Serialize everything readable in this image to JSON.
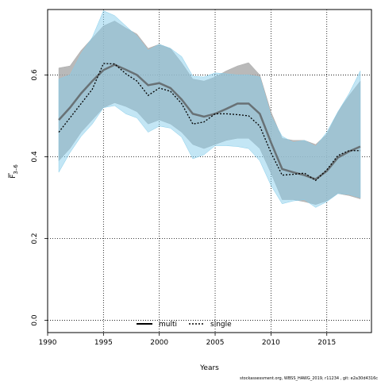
{
  "chart_data": {
    "type": "line",
    "xlabel": "Years",
    "ylabel_main": "F",
    "ylabel_sub": "3–6",
    "xlim": [
      1990,
      2019
    ],
    "ylim": [
      -0.03,
      0.76
    ],
    "xticks": [
      1990,
      1995,
      2000,
      2005,
      2010,
      2015
    ],
    "yticks": [
      0.0,
      0.2,
      0.4,
      0.6
    ],
    "grid": true,
    "legend_position": "bottom-center",
    "x": [
      1991,
      1992,
      1993,
      1994,
      1995,
      1996,
      1997,
      1998,
      1999,
      2000,
      2001,
      2002,
      2003,
      2004,
      2005,
      2006,
      2007,
      2008,
      2009,
      2010,
      2011,
      2012,
      2013,
      2014,
      2015,
      2016,
      2017,
      2018
    ],
    "series": [
      {
        "name": "multi",
        "color": "#555555",
        "band_color": "#a8a8a8",
        "values": [
          0.49,
          0.52,
          0.555,
          0.585,
          0.612,
          0.625,
          0.613,
          0.6,
          0.575,
          0.58,
          0.568,
          0.54,
          0.505,
          0.498,
          0.505,
          0.517,
          0.53,
          0.53,
          0.505,
          0.435,
          0.37,
          0.362,
          0.355,
          0.345,
          0.365,
          0.398,
          0.413,
          0.425
        ],
        "lower": [
          0.39,
          0.42,
          0.46,
          0.49,
          0.52,
          0.532,
          0.523,
          0.51,
          0.48,
          0.49,
          0.48,
          0.46,
          0.43,
          0.42,
          0.43,
          0.44,
          0.445,
          0.445,
          0.42,
          0.36,
          0.295,
          0.295,
          0.29,
          0.283,
          0.292,
          0.31,
          0.305,
          0.297
        ],
        "upper": [
          0.617,
          0.622,
          0.66,
          0.69,
          0.72,
          0.732,
          0.715,
          0.7,
          0.665,
          0.675,
          0.665,
          0.63,
          0.59,
          0.585,
          0.595,
          0.61,
          0.622,
          0.63,
          0.6,
          0.51,
          0.445,
          0.44,
          0.44,
          0.43,
          0.455,
          0.51,
          0.55,
          0.585
        ]
      },
      {
        "name": "single",
        "color": "#000000",
        "band_color": "#87ceeb",
        "values": [
          0.46,
          0.495,
          0.53,
          0.565,
          0.628,
          0.627,
          0.603,
          0.585,
          0.55,
          0.568,
          0.56,
          0.53,
          0.48,
          0.485,
          0.505,
          0.505,
          0.503,
          0.5,
          0.475,
          0.41,
          0.355,
          0.357,
          0.36,
          0.342,
          0.368,
          0.403,
          0.415,
          0.415
        ],
        "lower": [
          0.362,
          0.41,
          0.45,
          0.48,
          0.52,
          0.525,
          0.505,
          0.495,
          0.46,
          0.475,
          0.47,
          0.448,
          0.395,
          0.405,
          0.427,
          0.427,
          0.425,
          0.42,
          0.39,
          0.33,
          0.285,
          0.292,
          0.295,
          0.276,
          0.29,
          0.31,
          0.308,
          0.3
        ],
        "upper": [
          0.59,
          0.6,
          0.652,
          0.692,
          0.757,
          0.745,
          0.72,
          0.695,
          0.66,
          0.675,
          0.665,
          0.645,
          0.597,
          0.595,
          0.605,
          0.603,
          0.6,
          0.6,
          0.595,
          0.5,
          0.45,
          0.435,
          0.44,
          0.425,
          0.46,
          0.51,
          0.555,
          0.61
        ]
      }
    ],
    "footer": "stockassessment.org,  WBSS_HAWG_2019,  r11234 ,  git:  e2a30d4316c"
  }
}
